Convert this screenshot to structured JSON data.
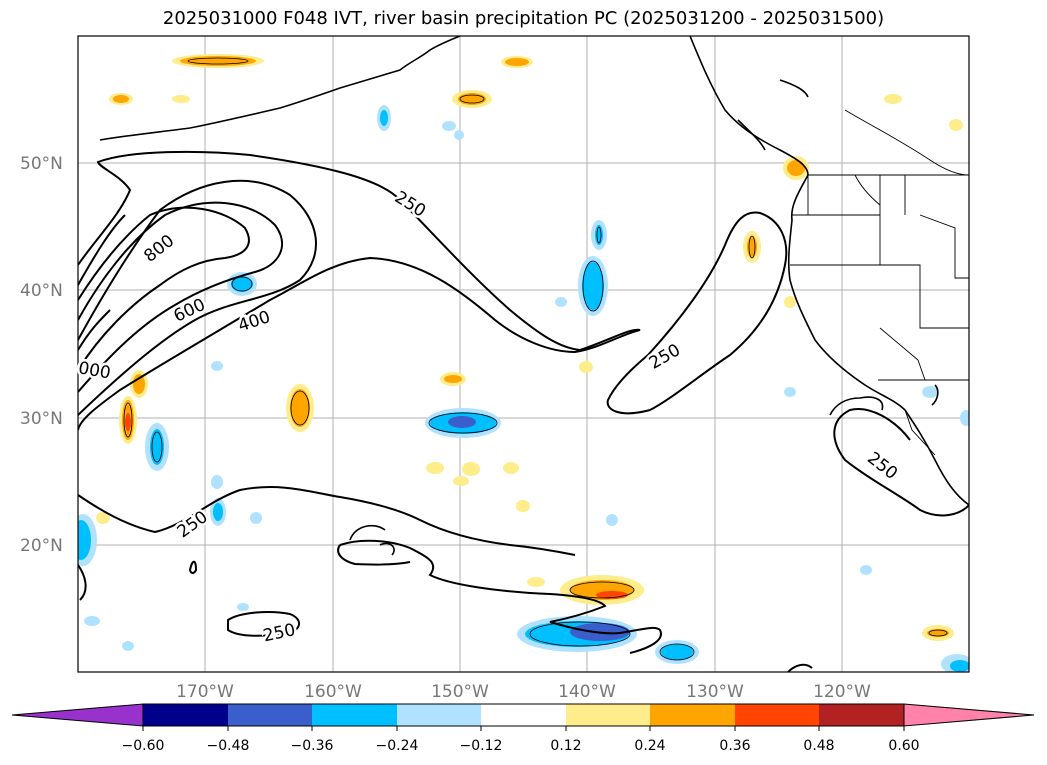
{
  "title": "2025031000 F048 IVT, river basin precipitation PC (2025031200 - 2025031500)",
  "map": {
    "lat_labels": [
      "50°N",
      "40°N",
      "30°N",
      "20°N"
    ],
    "lon_labels": [
      "170°W",
      "160°W",
      "150°W",
      "140°W",
      "130°W",
      "120°W"
    ],
    "contour_labels": [
      "250",
      "250",
      "250",
      "250",
      "250",
      "400",
      "600",
      "800",
      "000"
    ]
  },
  "colorbar": {
    "ticks": [
      "−0.60",
      "−0.48",
      "−0.36",
      "−0.24",
      "−0.12",
      "0.12",
      "0.24",
      "0.36",
      "0.48",
      "0.60"
    ],
    "colors": [
      "#9932CC",
      "#00008B",
      "#3A5FCD",
      "#00BFFF",
      "#B0E2FF",
      "#FFFFFF",
      "#FFEC8B",
      "#FFA500",
      "#FF4500",
      "#B22222",
      "#FF82AB"
    ]
  }
}
